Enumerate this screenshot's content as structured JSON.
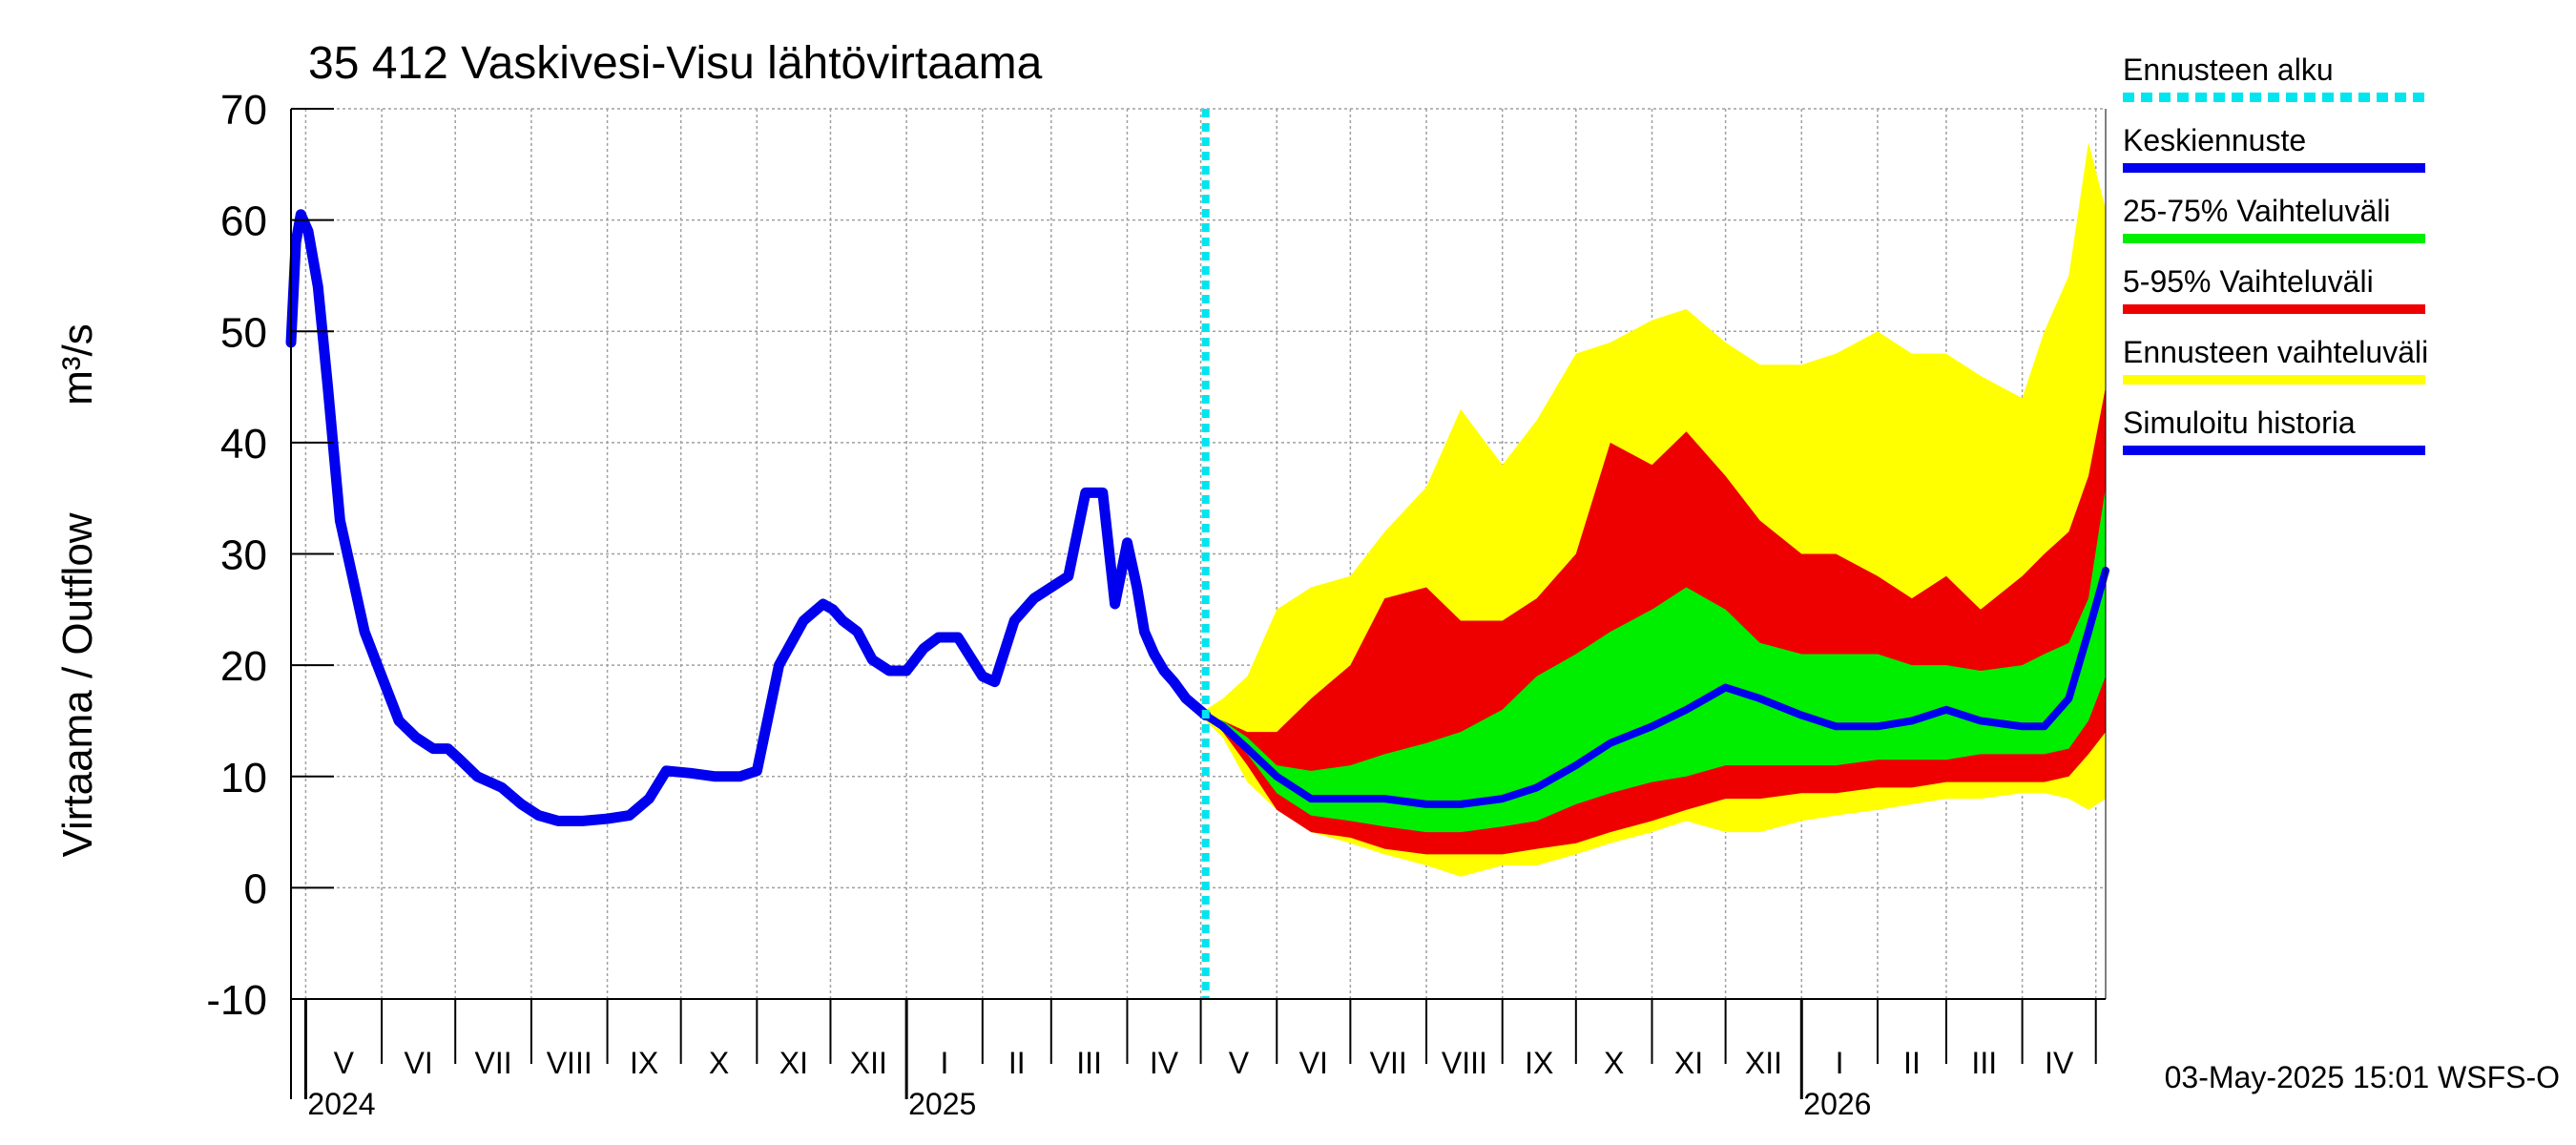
{
  "chart_data": {
    "type": "area",
    "title": "35 412 Vaskivesi-Visu lähtövirtaama",
    "ylabel": "Virtaama / Outflow",
    "yunit": "m³/s",
    "ylim": [
      -10,
      70
    ],
    "yticks": [
      -10,
      0,
      10,
      20,
      30,
      40,
      50,
      60,
      70
    ],
    "xlim": [
      "2024-04-25",
      "2026-05-05"
    ],
    "grid": true,
    "legend_position": "right",
    "months": [
      {
        "label": "V",
        "start": "2024-05-01",
        "end": "2024-06-01"
      },
      {
        "label": "VI",
        "start": "2024-06-01",
        "end": "2024-07-01"
      },
      {
        "label": "VII",
        "start": "2024-07-01",
        "end": "2024-08-01"
      },
      {
        "label": "VIII",
        "start": "2024-08-01",
        "end": "2024-09-01"
      },
      {
        "label": "IX",
        "start": "2024-09-01",
        "end": "2024-10-01"
      },
      {
        "label": "X",
        "start": "2024-10-01",
        "end": "2024-11-01"
      },
      {
        "label": "XI",
        "start": "2024-11-01",
        "end": "2024-12-01"
      },
      {
        "label": "XII",
        "start": "2024-12-01",
        "end": "2025-01-01"
      },
      {
        "label": "I",
        "start": "2025-01-01",
        "end": "2025-02-01"
      },
      {
        "label": "II",
        "start": "2025-02-01",
        "end": "2025-03-01"
      },
      {
        "label": "III",
        "start": "2025-03-01",
        "end": "2025-04-01"
      },
      {
        "label": "IV",
        "start": "2025-04-01",
        "end": "2025-05-01"
      },
      {
        "label": "V",
        "start": "2025-05-01",
        "end": "2025-06-01"
      },
      {
        "label": "VI",
        "start": "2025-06-01",
        "end": "2025-07-01"
      },
      {
        "label": "VII",
        "start": "2025-07-01",
        "end": "2025-08-01"
      },
      {
        "label": "VIII",
        "start": "2025-08-01",
        "end": "2025-09-01"
      },
      {
        "label": "IX",
        "start": "2025-09-01",
        "end": "2025-10-01"
      },
      {
        "label": "X",
        "start": "2025-10-01",
        "end": "2025-11-01"
      },
      {
        "label": "XI",
        "start": "2025-11-01",
        "end": "2025-12-01"
      },
      {
        "label": "XII",
        "start": "2025-12-01",
        "end": "2026-01-01"
      },
      {
        "label": "I",
        "start": "2026-01-01",
        "end": "2026-02-01"
      },
      {
        "label": "II",
        "start": "2026-02-01",
        "end": "2026-03-01"
      },
      {
        "label": "III",
        "start": "2026-03-01",
        "end": "2026-04-01"
      },
      {
        "label": "IV",
        "start": "2026-04-01",
        "end": "2026-05-01"
      }
    ],
    "years": [
      {
        "label": "2024",
        "date": "2024-05-01"
      },
      {
        "label": "2025",
        "date": "2025-01-01"
      },
      {
        "label": "2026",
        "date": "2026-01-01"
      }
    ],
    "forecast_start": "2025-05-03",
    "legend": [
      {
        "label": "Ennusteen alku",
        "color": "#00e5ee",
        "style": "dashed"
      },
      {
        "label": "Keskiennuste",
        "color": "#0000ee",
        "style": "solid"
      },
      {
        "label": "25-75% Vaihteluväli",
        "color": "#00ee00",
        "style": "solid"
      },
      {
        "label": "5-95% Vaihteluväli",
        "color": "#ee0000",
        "style": "solid"
      },
      {
        "label": "Ennusteen vaihteluväli",
        "color": "#ffff00",
        "style": "solid"
      },
      {
        "label": "Simuloitu historia",
        "color": "#0000ee",
        "style": "solid"
      }
    ],
    "footer": "03-May-2025 15:01 WSFS-O",
    "colors": {
      "history": "#0000ee",
      "median": "#0000ee",
      "band_25_75": "#00ee00",
      "band_5_95": "#ee0000",
      "band_range": "#ffff00",
      "forecast_start": "#00e5ee",
      "grid": "#a0a0a0"
    },
    "series": [
      {
        "name": "Simuloitu historia",
        "x": [
          "2024-04-25",
          "2024-04-27",
          "2024-04-29",
          "2024-05-02",
          "2024-05-06",
          "2024-05-10",
          "2024-05-15",
          "2024-05-20",
          "2024-05-25",
          "2024-06-01",
          "2024-06-08",
          "2024-06-15",
          "2024-06-22",
          "2024-06-28",
          "2024-07-03",
          "2024-07-10",
          "2024-07-20",
          "2024-07-28",
          "2024-08-04",
          "2024-08-12",
          "2024-08-22",
          "2024-09-01",
          "2024-09-10",
          "2024-09-18",
          "2024-09-25",
          "2024-10-05",
          "2024-10-15",
          "2024-10-25",
          "2024-11-01",
          "2024-11-10",
          "2024-11-20",
          "2024-11-28",
          "2024-12-02",
          "2024-12-06",
          "2024-12-12",
          "2024-12-18",
          "2024-12-25",
          "2025-01-01",
          "2025-01-08",
          "2025-01-14",
          "2025-01-22",
          "2025-02-01",
          "2025-02-06",
          "2025-02-14",
          "2025-02-22",
          "2025-03-01",
          "2025-03-08",
          "2025-03-15",
          "2025-03-22",
          "2025-03-27",
          "2025-04-01",
          "2025-04-05",
          "2025-04-08",
          "2025-04-12",
          "2025-04-16",
          "2025-04-20",
          "2025-04-25",
          "2025-05-03"
        ],
        "values": [
          49,
          58,
          60.5,
          59,
          54,
          45,
          33,
          28,
          23,
          19,
          15,
          13.5,
          12.5,
          12.5,
          11.5,
          10,
          9,
          7.5,
          6.5,
          6,
          6,
          6.2,
          6.5,
          8,
          10.5,
          10.3,
          10,
          10,
          10.5,
          20,
          24,
          25.5,
          25,
          24,
          23,
          20.5,
          19.5,
          19.5,
          21.5,
          22.5,
          22.5,
          19,
          18.5,
          24,
          26,
          27,
          28,
          35.5,
          35.5,
          25.5,
          31,
          27,
          23,
          21,
          19.5,
          18.5,
          17,
          15.5
        ]
      },
      {
        "name": "Keskiennuste",
        "x": [
          "2025-05-03",
          "2025-05-10",
          "2025-05-20",
          "2025-06-01",
          "2025-06-15",
          "2025-07-01",
          "2025-07-15",
          "2025-08-01",
          "2025-08-15",
          "2025-09-01",
          "2025-09-15",
          "2025-10-01",
          "2025-10-15",
          "2025-11-01",
          "2025-11-15",
          "2025-12-01",
          "2025-12-15",
          "2026-01-01",
          "2026-01-15",
          "2026-02-01",
          "2026-02-15",
          "2026-03-01",
          "2026-03-15",
          "2026-04-01",
          "2026-04-10",
          "2026-04-20",
          "2026-04-28",
          "2026-05-05"
        ],
        "values": [
          15.5,
          14.5,
          12.5,
          10,
          8,
          8,
          8,
          7.5,
          7.5,
          8,
          9,
          11,
          13,
          14.5,
          16,
          18,
          17,
          15.5,
          14.5,
          14.5,
          15,
          16,
          15,
          14.5,
          14.5,
          17,
          23,
          28.5
        ]
      },
      {
        "name": "Ennusteen vaihteluväli",
        "x": [
          "2025-05-03",
          "2025-05-10",
          "2025-05-20",
          "2025-06-01",
          "2025-06-15",
          "2025-07-01",
          "2025-07-15",
          "2025-08-01",
          "2025-08-15",
          "2025-09-01",
          "2025-09-15",
          "2025-10-01",
          "2025-10-15",
          "2025-11-01",
          "2025-11-15",
          "2025-12-01",
          "2025-12-15",
          "2026-01-01",
          "2026-01-15",
          "2026-02-01",
          "2026-02-15",
          "2026-03-01",
          "2026-03-15",
          "2026-04-01",
          "2026-04-10",
          "2026-04-20",
          "2026-04-28",
          "2026-05-05"
        ],
        "lower": [
          15,
          13.5,
          9.5,
          7,
          5,
          4,
          3,
          2,
          1,
          2,
          2,
          3,
          4,
          5,
          6,
          5,
          5,
          6,
          6.5,
          7,
          7.5,
          8,
          8,
          8.5,
          8.5,
          8,
          7,
          8
        ],
        "upper": [
          16,
          17,
          19,
          25,
          27,
          28,
          32,
          36,
          43,
          38,
          42,
          48,
          49,
          51,
          52,
          49,
          47,
          47,
          48,
          50,
          48,
          48,
          46,
          44,
          50,
          55,
          67,
          61
        ]
      },
      {
        "name": "5-95% Vaihteluväli",
        "x": [
          "2025-05-03",
          "2025-05-10",
          "2025-05-20",
          "2025-06-01",
          "2025-06-15",
          "2025-07-01",
          "2025-07-15",
          "2025-08-01",
          "2025-08-15",
          "2025-09-01",
          "2025-09-15",
          "2025-10-01",
          "2025-10-15",
          "2025-11-01",
          "2025-11-15",
          "2025-12-01",
          "2025-12-15",
          "2026-01-01",
          "2026-01-15",
          "2026-02-01",
          "2026-02-15",
          "2026-03-01",
          "2026-03-15",
          "2026-04-01",
          "2026-04-10",
          "2026-04-20",
          "2026-04-28",
          "2026-05-05"
        ],
        "lower": [
          15.5,
          14,
          11,
          7,
          5,
          4.5,
          3.5,
          3,
          3,
          3,
          3.5,
          4,
          5,
          6,
          7,
          8,
          8,
          8.5,
          8.5,
          9,
          9,
          9.5,
          9.5,
          9.5,
          9.5,
          10,
          12,
          14
        ],
        "upper": [
          15.5,
          15,
          14,
          14,
          17,
          20,
          26,
          27,
          24,
          24,
          26,
          30,
          40,
          38,
          41,
          37,
          33,
          30,
          30,
          28,
          26,
          28,
          25,
          28,
          30,
          32,
          37,
          45
        ]
      },
      {
        "name": "25-75% Vaihteluväli",
        "x": [
          "2025-05-03",
          "2025-05-10",
          "2025-05-20",
          "2025-06-01",
          "2025-06-15",
          "2025-07-01",
          "2025-07-15",
          "2025-08-01",
          "2025-08-15",
          "2025-09-01",
          "2025-09-15",
          "2025-10-01",
          "2025-10-15",
          "2025-11-01",
          "2025-11-15",
          "2025-12-01",
          "2025-12-15",
          "2026-01-01",
          "2026-01-15",
          "2026-02-01",
          "2026-02-15",
          "2026-03-01",
          "2026-03-15",
          "2026-04-01",
          "2026-04-10",
          "2026-04-20",
          "2026-04-28",
          "2026-05-05"
        ],
        "lower": [
          15.5,
          14.5,
          12,
          8.5,
          6.5,
          6,
          5.5,
          5,
          5,
          5.5,
          6,
          7.5,
          8.5,
          9.5,
          10,
          11,
          11,
          11,
          11,
          11.5,
          11.5,
          11.5,
          12,
          12,
          12,
          12.5,
          15,
          19
        ],
        "upper": [
          15.5,
          15,
          13.5,
          11,
          10.5,
          11,
          12,
          13,
          14,
          16,
          19,
          21,
          23,
          25,
          27,
          25,
          22,
          21,
          21,
          21,
          20,
          20,
          19.5,
          20,
          21,
          22,
          26,
          36
        ]
      }
    ]
  }
}
